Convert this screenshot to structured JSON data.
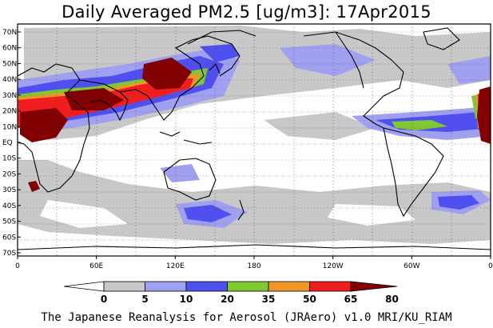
{
  "title": "Daily Averaged PM2.5 [ug/m3]: 17Apr2015",
  "footer": "The Japanese Reanalysis for Aerosol (JRAero) v1.0 MRI/KU_RIAM",
  "map": {
    "lat_labels": [
      "70N",
      "60N",
      "50N",
      "40N",
      "30N",
      "20N",
      "10N",
      "EQ",
      "10S",
      "20S",
      "30S",
      "40S",
      "50S",
      "60S",
      "70S"
    ],
    "lon_labels": [
      "0",
      "60E",
      "120E",
      "180",
      "120W",
      "60W",
      "0"
    ]
  },
  "colorbar": {
    "ticks": [
      "0",
      "5",
      "10",
      "20",
      "35",
      "50",
      "65",
      "80"
    ],
    "colors": [
      "#ffffff",
      "#c8c8c8",
      "#a0a0f0",
      "#5050f0",
      "#80c830",
      "#f09628",
      "#f01e1e",
      "#820000"
    ]
  }
}
